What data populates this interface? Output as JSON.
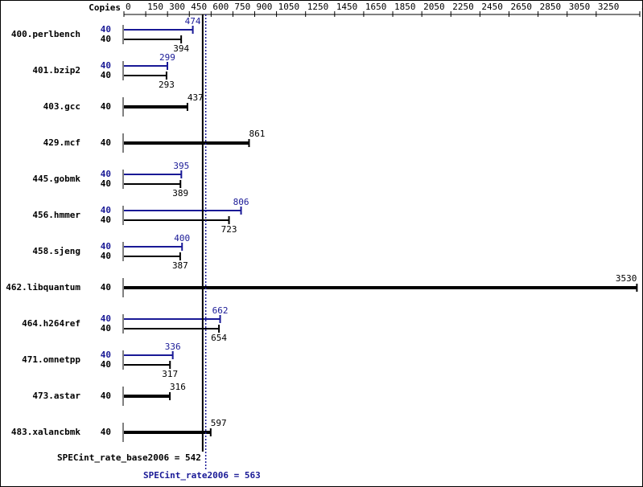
{
  "chart_data": {
    "type": "bar",
    "copies_label": "Copies",
    "categories": [
      "400.perlbench",
      "401.bzip2",
      "403.gcc",
      "429.mcf",
      "445.gobmk",
      "456.hmmer",
      "458.sjeng",
      "462.libquantum",
      "464.h264ref",
      "471.omnetpp",
      "473.astar",
      "483.xalancbmk"
    ],
    "series": [
      {
        "name": "base",
        "color": "#000000",
        "copies": [
          40,
          40,
          40,
          40,
          40,
          40,
          40,
          40,
          40,
          40,
          40,
          40
        ],
        "values": [
          394,
          293,
          437,
          861,
          389,
          723,
          387,
          3530,
          654,
          317,
          316,
          597
        ]
      },
      {
        "name": "peak",
        "color": "#191996",
        "copies": [
          40,
          40,
          null,
          null,
          40,
          40,
          40,
          null,
          40,
          40,
          null,
          null
        ],
        "values": [
          474,
          299,
          null,
          null,
          395,
          806,
          400,
          null,
          662,
          336,
          null,
          null
        ]
      }
    ],
    "xlim": [
      0,
      3550
    ],
    "xticks": [
      0,
      150,
      300,
      450,
      600,
      750,
      900,
      1050,
      1250,
      1450,
      1650,
      1850,
      2050,
      2250,
      2450,
      2650,
      2850,
      3050,
      3250,
      3550
    ],
    "reference_lines": [
      {
        "label": "SPECint_rate_base2006 = 542",
        "value": 542,
        "color": "#000000"
      },
      {
        "label": "SPECint_rate2006 = 563",
        "value": 563,
        "color": "#191996"
      }
    ]
  }
}
